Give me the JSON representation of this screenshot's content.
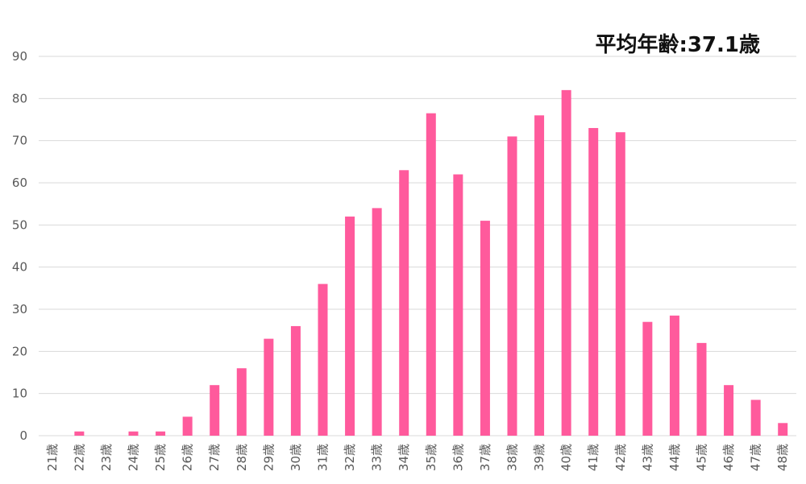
{
  "chart_data": {
    "type": "bar",
    "annotation": "平均年齢:37.1歳",
    "categories": [
      "21歳",
      "22歳",
      "23歳",
      "24歳",
      "25歳",
      "26歳",
      "27歳",
      "28歳",
      "29歳",
      "30歳",
      "31歳",
      "32歳",
      "33歳",
      "34歳",
      "35歳",
      "36歳",
      "37歳",
      "38歳",
      "39歳",
      "40歳",
      "41歳",
      "42歳",
      "43歳",
      "44歳",
      "45歳",
      "46歳",
      "47歳",
      "48歳"
    ],
    "values": [
      0,
      1,
      0,
      1,
      1,
      4.5,
      12,
      16,
      23,
      26,
      36,
      52,
      54,
      63,
      76.5,
      62,
      51,
      71,
      76,
      82,
      73,
      72,
      27,
      28.5,
      22,
      12,
      8.5,
      3
    ],
    "yticks": [
      "0",
      "10",
      "20",
      "30",
      "40",
      "50",
      "60",
      "70",
      "80",
      "90"
    ],
    "ylim": [
      0,
      90
    ],
    "grid": true,
    "bar_color": "#ff5a9c"
  }
}
